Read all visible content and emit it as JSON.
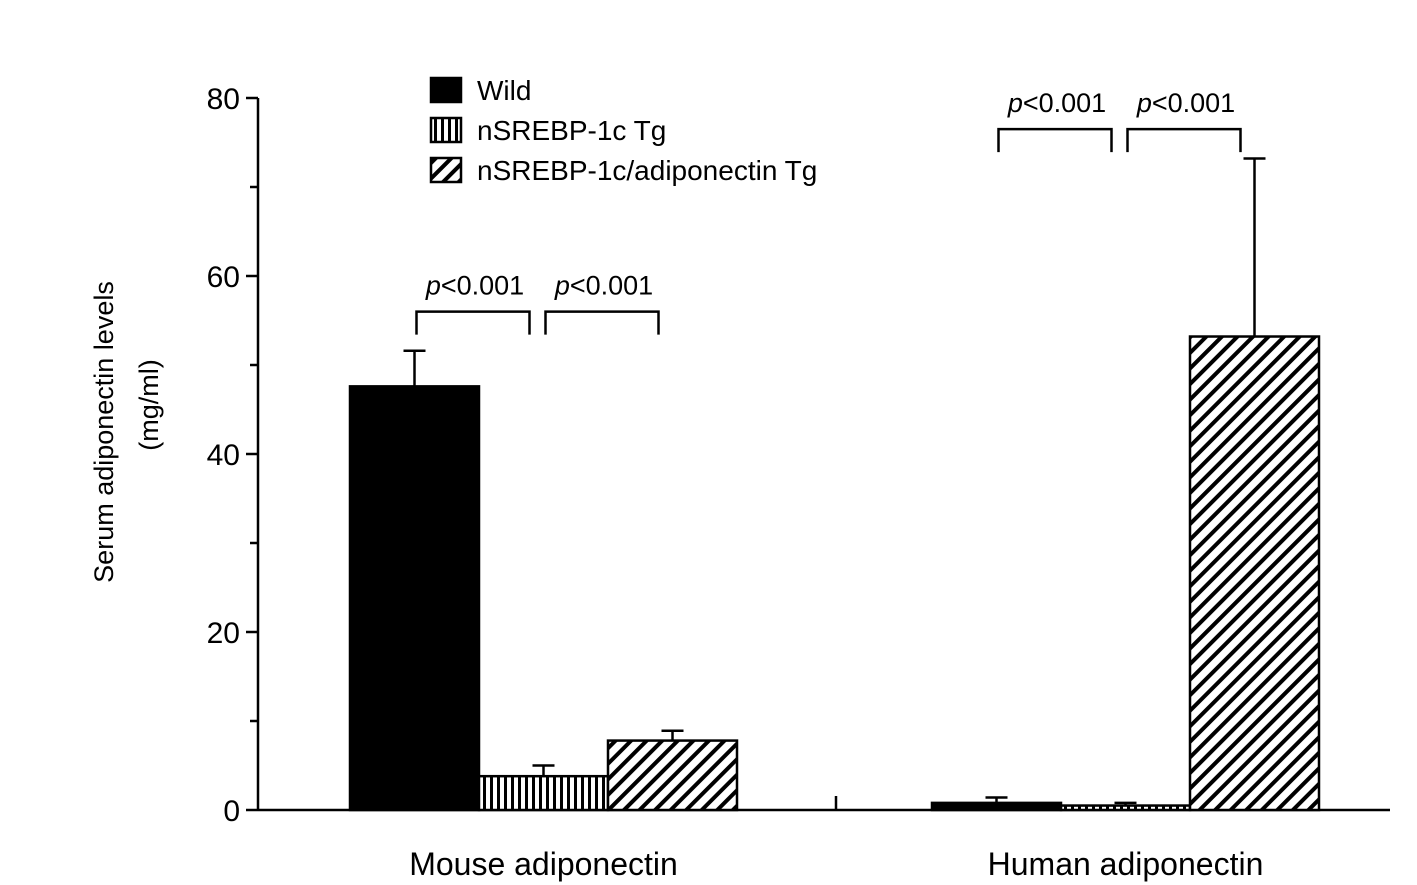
{
  "chart_data": {
    "type": "bar",
    "title": "",
    "xlabel": "",
    "ylabel": "Serum adiponectin levels",
    "ylabel_unit": "(mg/ml)",
    "ylim": [
      0,
      80
    ],
    "yticks": [
      0,
      20,
      40,
      60,
      80
    ],
    "y_minor_step": 10,
    "grid": false,
    "legend_position": "top-left",
    "categories": [
      "Mouse adiponectin",
      "Human adiponectin"
    ],
    "series": [
      {
        "name": "Wild",
        "pattern": "solid",
        "values": [
          47.6,
          0.8
        ],
        "errors": [
          4.0,
          0.6
        ]
      },
      {
        "name": "nSREBP-1c Tg",
        "pattern": "vertical-lines",
        "values": [
          3.8,
          0.5
        ],
        "errors": [
          1.2,
          0.3
        ]
      },
      {
        "name": "nSREBP-1c/adiponectin Tg",
        "pattern": "diagonal-lines",
        "values": [
          7.8,
          53.2
        ],
        "errors": [
          1.1,
          20.0
        ]
      }
    ],
    "annotations": [
      {
        "category": 0,
        "from_series": 0,
        "to_series": 1,
        "italic": "p",
        "text": "<0.001",
        "level": 56
      },
      {
        "category": 0,
        "from_series": 1,
        "to_series": 2,
        "italic": "p",
        "text": "<0.001",
        "level": 56
      },
      {
        "category": 1,
        "from_series": 0,
        "to_series": 1,
        "italic": "p",
        "text": "<0.001",
        "level": 76.5
      },
      {
        "category": 1,
        "from_series": 1,
        "to_series": 2,
        "italic": "p",
        "text": "<0.001",
        "level": 76.5
      }
    ],
    "colors": {
      "bar": "#000000",
      "background": "#ffffff"
    }
  }
}
